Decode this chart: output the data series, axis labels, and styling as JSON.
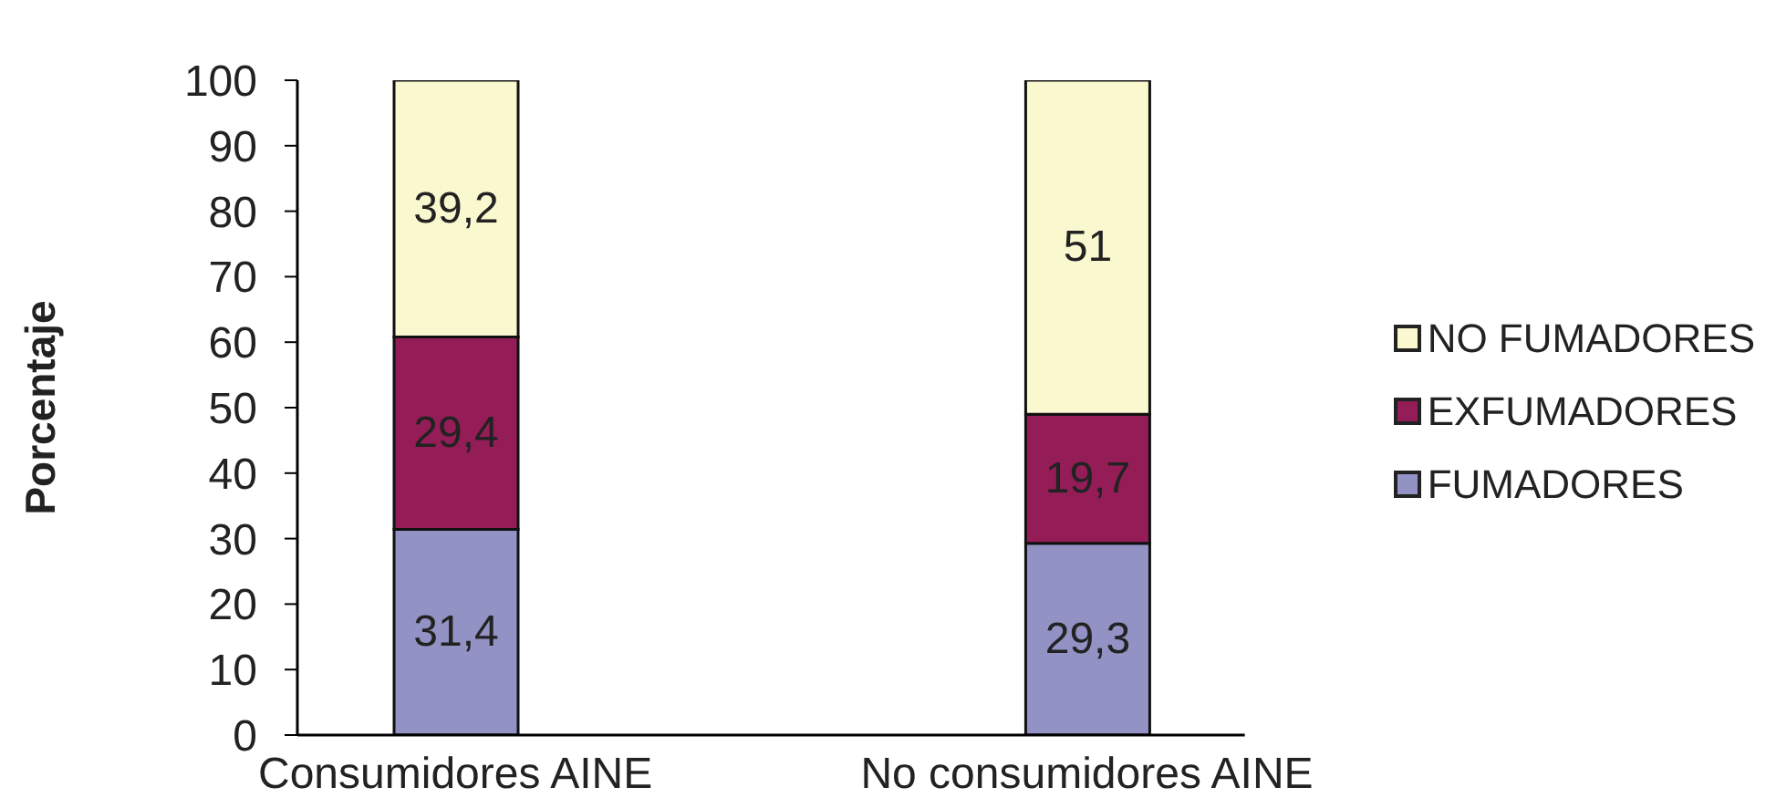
{
  "chart_data": {
    "type": "bar",
    "stacked": true,
    "ylabel": "Porcentaje",
    "categories": [
      "Consumidores AINE",
      null,
      "No consumidores AINE"
    ],
    "series": [
      {
        "name": "FUMADORES",
        "color": "#9292c4",
        "values": [
          31.4,
          null,
          29.3
        ],
        "value_labels": [
          "31,4",
          null,
          "29,3"
        ]
      },
      {
        "name": "EXFUMADORES",
        "color": "#951d57",
        "values": [
          29.4,
          null,
          19.7
        ],
        "value_labels": [
          "29,4",
          null,
          "19,7"
        ]
      },
      {
        "name": "NO FUMADORES",
        "color": "#faf8cf",
        "values": [
          39.2,
          null,
          51
        ],
        "value_labels": [
          "39,2",
          null,
          "51"
        ]
      }
    ],
    "ylim": [
      0,
      100
    ],
    "yticks": [
      0,
      10,
      20,
      30,
      40,
      50,
      60,
      70,
      80,
      90,
      100
    ],
    "legend": "right"
  }
}
